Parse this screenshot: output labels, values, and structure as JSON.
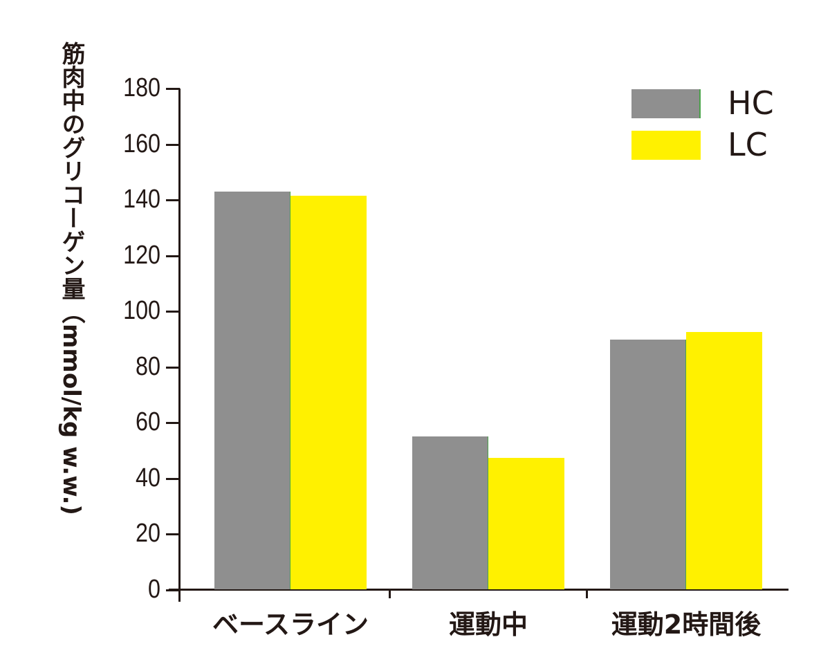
{
  "chart_data": {
    "type": "bar",
    "title": "",
    "xlabel": "",
    "ylabel": "筋肉中のグリコーゲン量（mmol/kg w.w.)",
    "ylim": [
      0,
      180
    ],
    "yticks": [
      0,
      20,
      40,
      60,
      80,
      100,
      120,
      140,
      160,
      180
    ],
    "grid": false,
    "legend_position": "top-right",
    "categories": [
      "ベースライン",
      "運動中",
      "運動2時間後"
    ],
    "series": [
      {
        "name": "HC",
        "color": "#8f8f8f",
        "values": [
          143,
          55,
          90
        ]
      },
      {
        "name": "LC",
        "color": "#fff100",
        "values": [
          141.5,
          47.5,
          92.5
        ]
      }
    ]
  }
}
